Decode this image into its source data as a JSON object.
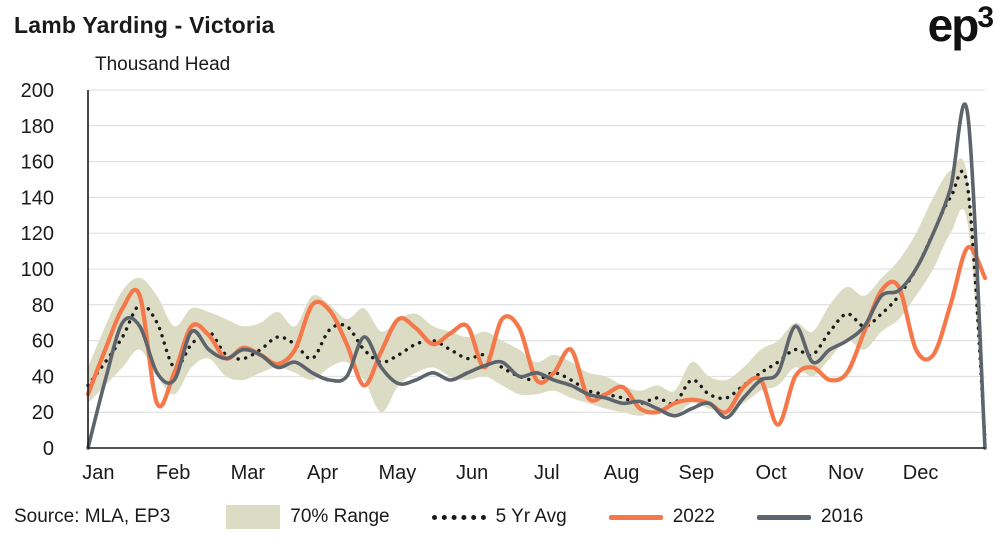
{
  "header": {
    "title": "Lamb Yarding - Victoria",
    "subtitle": "Thousand Head",
    "logo_text": "ep",
    "logo_sup": "3"
  },
  "footer": {
    "source": "Source: MLA, EP3"
  },
  "legend": {
    "items": [
      {
        "label": "70% Range",
        "type": "band",
        "color": "#dcdbc3"
      },
      {
        "label": "5 Yr Avg",
        "type": "dotted",
        "color": "#1a1a1a"
      },
      {
        "label": "2022",
        "type": "line",
        "color": "#f4784a"
      },
      {
        "label": "2016",
        "type": "line",
        "color": "#5d646c"
      }
    ]
  },
  "chart_data": {
    "type": "line",
    "title": "Lamb Yarding - Victoria",
    "ylabel": "Thousand Head",
    "xlabel": "",
    "ylim": [
      0,
      200
    ],
    "yticks": [
      0,
      20,
      40,
      60,
      80,
      100,
      120,
      140,
      160,
      180,
      200
    ],
    "x_unit": "week-of-year",
    "x_labels": [
      "Jan",
      "Feb",
      "Mar",
      "Apr",
      "May",
      "Jun",
      "Jul",
      "Aug",
      "Sep",
      "Oct",
      "Nov",
      "Dec"
    ],
    "grid": "horizontal",
    "legend_position": "bottom",
    "band": {
      "name": "70% Range",
      "color": "#dcdbc3",
      "upper": [
        45,
        68,
        88,
        95,
        85,
        68,
        78,
        76,
        72,
        68,
        70,
        76,
        68,
        85,
        80,
        72,
        78,
        65,
        72,
        75,
        68,
        65,
        62,
        65,
        60,
        55,
        48,
        52,
        48,
        42,
        40,
        35,
        32,
        35,
        32,
        48,
        40,
        38,
        45,
        55,
        60,
        70,
        65,
        80,
        90,
        85,
        95,
        105,
        120,
        140,
        155,
        150,
        20
      ],
      "lower": [
        25,
        35,
        45,
        55,
        40,
        30,
        45,
        50,
        40,
        38,
        42,
        45,
        42,
        38,
        45,
        48,
        38,
        20,
        35,
        42,
        45,
        40,
        38,
        40,
        35,
        30,
        30,
        32,
        28,
        25,
        22,
        20,
        18,
        20,
        18,
        25,
        22,
        20,
        25,
        32,
        35,
        45,
        40,
        50,
        60,
        55,
        65,
        72,
        85,
        100,
        120,
        125,
        0
      ]
    },
    "series": [
      {
        "name": "5 Yr Avg",
        "style": "dotted",
        "color": "#1a1a1a",
        "values": [
          35,
          48,
          62,
          80,
          70,
          45,
          58,
          65,
          52,
          50,
          55,
          62,
          58,
          50,
          66,
          68,
          55,
          48,
          52,
          58,
          60,
          55,
          50,
          52,
          45,
          40,
          38,
          42,
          38,
          32,
          30,
          28,
          25,
          28,
          25,
          38,
          30,
          28,
          35,
          42,
          48,
          55,
          52,
          65,
          75,
          68,
          75,
          85,
          100,
          120,
          140,
          145,
          5
        ]
      },
      {
        "name": "2022",
        "style": "solid",
        "color": "#f4784a",
        "values": [
          30,
          55,
          78,
          85,
          25,
          42,
          68,
          63,
          50,
          56,
          52,
          47,
          55,
          80,
          77,
          58,
          35,
          54,
          72,
          67,
          58,
          64,
          68,
          45,
          72,
          67,
          38,
          42,
          55,
          28,
          30,
          34,
          22,
          20,
          25,
          27,
          25,
          20,
          34,
          38,
          13,
          40,
          45,
          38,
          42,
          65,
          88,
          90,
          55,
          52,
          80,
          112,
          95
        ]
      },
      {
        "name": "2016",
        "style": "solid",
        "color": "#5d646c",
        "values": [
          0,
          38,
          70,
          68,
          42,
          38,
          65,
          55,
          50,
          55,
          52,
          45,
          48,
          42,
          38,
          40,
          62,
          45,
          36,
          38,
          42,
          38,
          42,
          46,
          48,
          40,
          42,
          38,
          35,
          30,
          28,
          25,
          26,
          22,
          18,
          22,
          25,
          17,
          28,
          38,
          42,
          68,
          48,
          55,
          60,
          68,
          85,
          88,
          100,
          120,
          145,
          186,
          0
        ]
      }
    ]
  }
}
